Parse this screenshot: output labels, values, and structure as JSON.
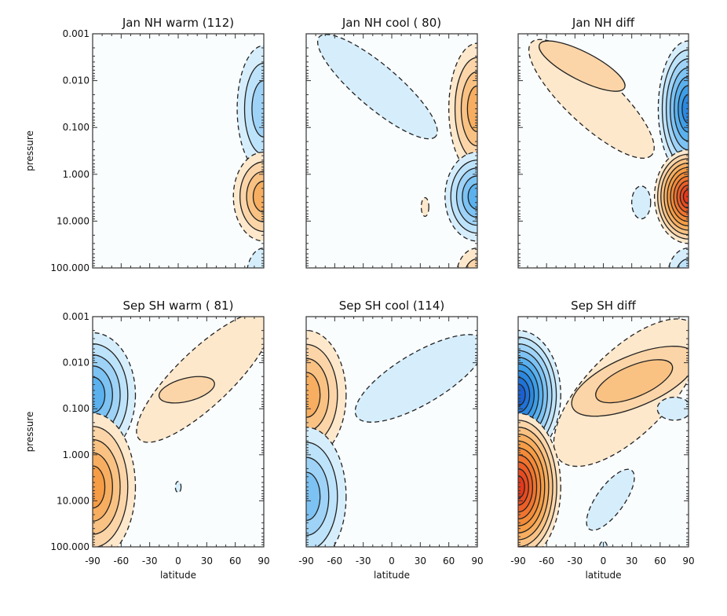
{
  "chart_data": [
    {
      "type": "contour",
      "title": "Jan NH warm (112)",
      "xlabel": "",
      "ylabel": "pressure",
      "xlim": [
        -90,
        90
      ],
      "ylim": [
        0.001,
        100
      ],
      "yscale": "log",
      "features": [
        {
          "sign": -1,
          "lat": 90,
          "p": 0.04,
          "dlat": 28,
          "dlogp": 1.35,
          "levels": 3
        },
        {
          "sign": 1,
          "lat": 90,
          "p": 3,
          "dlat": 32,
          "dlogp": 0.95,
          "levels": 4
        },
        {
          "sign": -1,
          "lat": 90,
          "p": 150,
          "dlat": 18,
          "dlogp": 0.6,
          "levels": 1
        }
      ]
    },
    {
      "type": "contour",
      "title": "Jan NH cool ( 80)",
      "xlabel": "",
      "ylabel": "",
      "xlim": [
        -90,
        90
      ],
      "ylim": [
        0.001,
        100
      ],
      "yscale": "log",
      "features": [
        {
          "sign": -1,
          "from": [
            -70,
            0.0015
          ],
          "to": [
            40,
            0.12
          ],
          "dlogp": 0.45,
          "levels": 1
        },
        {
          "sign": 1,
          "lat": 90,
          "p": 0.04,
          "dlat": 30,
          "dlogp": 1.4,
          "levels": 4
        },
        {
          "sign": -1,
          "lat": 90,
          "p": 3,
          "dlat": 34,
          "dlogp": 0.95,
          "levels": 5
        },
        {
          "sign": 1,
          "lat": 35,
          "p": 5,
          "dlat": 4,
          "dlogp": 0.2,
          "levels": 1
        },
        {
          "sign": 1,
          "lat": 90,
          "p": 150,
          "dlat": 22,
          "dlogp": 0.6,
          "levels": 2
        }
      ]
    },
    {
      "type": "contour",
      "title": "Jan NH diff",
      "xlabel": "",
      "ylabel": "",
      "xlim": [
        -90,
        90
      ],
      "ylim": [
        0.001,
        100
      ],
      "yscale": "log",
      "features": [
        {
          "sign": 1,
          "from": [
            -70,
            0.002
          ],
          "to": [
            45,
            0.3
          ],
          "dlogp": 0.55,
          "levels": 1
        },
        {
          "sign": 1,
          "from": [
            -60,
            0.002
          ],
          "to": [
            15,
            0.012
          ],
          "dlogp": 0.3,
          "levels": 1
        },
        {
          "sign": -1,
          "lat": 90,
          "p": 0.04,
          "dlat": 32,
          "dlogp": 1.45,
          "levels": 7
        },
        {
          "sign": 1,
          "lat": 90,
          "p": 3,
          "dlat": 36,
          "dlogp": 1.0,
          "levels": 10
        },
        {
          "sign": -1,
          "lat": 40,
          "p": 4,
          "dlat": 10,
          "dlogp": 0.35,
          "levels": 1
        },
        {
          "sign": -1,
          "lat": 90,
          "p": 150,
          "dlat": 22,
          "dlogp": 0.6,
          "levels": 2
        }
      ]
    },
    {
      "type": "contour",
      "title": "Sep SH warm ( 81)",
      "xlabel": "latitude",
      "ylabel": "pressure",
      "xlim": [
        -90,
        90
      ],
      "ylim": [
        0.001,
        100
      ],
      "yscale": "log",
      "features": [
        {
          "sign": 1,
          "from": [
            -35,
            0.35
          ],
          "to": [
            90,
            0.0012
          ],
          "dlogp": 0.6,
          "levels": 1
        },
        {
          "sign": 1,
          "from": [
            -12,
            0.05
          ],
          "to": [
            30,
            0.03
          ],
          "dlogp": 0.25,
          "levels": 1
        },
        {
          "sign": -1,
          "lat": -90,
          "p": 0.05,
          "dlat": 45,
          "dlogp": 1.35,
          "levels": 5
        },
        {
          "sign": 1,
          "lat": -90,
          "p": 5,
          "dlat": 45,
          "dlogp": 1.6,
          "levels": 5
        },
        {
          "sign": -1,
          "lat": 0,
          "p": 5,
          "dlat": 3,
          "dlogp": 0.12,
          "levels": 1
        }
      ]
    },
    {
      "type": "contour",
      "title": "Sep SH cool (114)",
      "xlabel": "latitude",
      "ylabel": "",
      "xlim": [
        -90,
        90
      ],
      "ylim": [
        0.001,
        100
      ],
      "yscale": "log",
      "features": [
        {
          "sign": -1,
          "from": [
            -30,
            0.12
          ],
          "to": [
            90,
            0.004
          ],
          "dlogp": 0.55,
          "levels": 1
        },
        {
          "sign": 1,
          "lat": -90,
          "p": 0.05,
          "dlat": 42,
          "dlogp": 1.4,
          "levels": 4
        },
        {
          "sign": -1,
          "lat": -90,
          "p": 8,
          "dlat": 42,
          "dlogp": 1.5,
          "levels": 4
        }
      ]
    },
    {
      "type": "contour",
      "title": "Sep SH diff",
      "xlabel": "latitude",
      "ylabel": "",
      "xlim": [
        -90,
        90
      ],
      "ylim": [
        0.001,
        100
      ],
      "yscale": "log",
      "features": [
        {
          "sign": 1,
          "from": [
            -40,
            1
          ],
          "to": [
            90,
            0.002
          ],
          "dlogp": 0.9,
          "levels": 1
        },
        {
          "sign": 1,
          "from": [
            -25,
            0.08
          ],
          "to": [
            90,
            0.008
          ],
          "dlogp": 0.55,
          "levels": 2
        },
        {
          "sign": -1,
          "lat": -90,
          "p": 0.05,
          "dlat": 45,
          "dlogp": 1.4,
          "levels": 9
        },
        {
          "sign": 1,
          "lat": -90,
          "p": 5,
          "dlat": 45,
          "dlogp": 1.6,
          "levels": 10
        },
        {
          "sign": -1,
          "from": [
            -10,
            30
          ],
          "to": [
            25,
            3
          ],
          "dlogp": 0.3,
          "levels": 1
        },
        {
          "sign": -1,
          "lat": 75,
          "p": 0.1,
          "dlat": 18,
          "dlogp": 0.25,
          "levels": 1
        },
        {
          "sign": -1,
          "lat": 0,
          "p": 100,
          "dlat": 4,
          "dlogp": 0.12,
          "levels": 1
        }
      ]
    }
  ],
  "axes": {
    "ytick_labels": [
      "0.001",
      "0.010",
      "0.100",
      "1.000",
      "10.000",
      "100.000"
    ],
    "xtick_labels": [
      "-90",
      "-60",
      "-30",
      "0",
      "30",
      "60",
      "90"
    ],
    "ylabel": "pressure",
    "xlabel": "latitude"
  },
  "colors": {
    "negative": [
      "#d6eefc",
      "#bde3fb",
      "#9ed3f7",
      "#7cc2f3",
      "#5ab1ee",
      "#3d9ee8",
      "#2b88e0",
      "#1f72d8",
      "#1a60d0",
      "#1650c8"
    ],
    "positive": [
      "#fde8cc",
      "#fbd5a8",
      "#f9c283",
      "#f7ae60",
      "#f59c45",
      "#f38a38",
      "#f0742e",
      "#ec5e26",
      "#e84a20",
      "#e4381a"
    ]
  }
}
